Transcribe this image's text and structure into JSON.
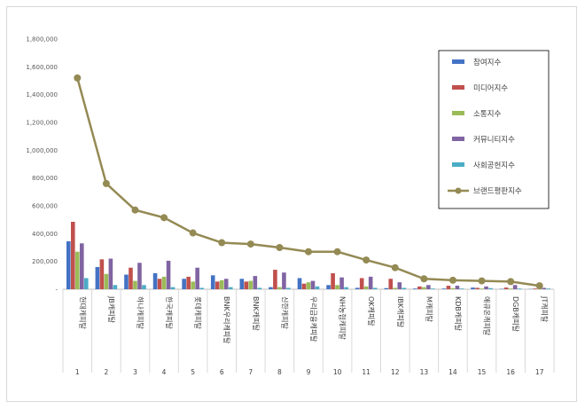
{
  "chart_data": {
    "type": "bar",
    "title": "",
    "xlabel": "",
    "ylabel": "",
    "ylim": [
      0,
      1800000
    ],
    "yticks": [
      "-",
      "200,000",
      "400,000",
      "600,000",
      "800,000",
      "1,000,000",
      "1,200,000",
      "1,400,000",
      "1,600,000",
      "1,800,000"
    ],
    "grid": false,
    "legend_position": "top-right",
    "categories": [
      "현대캐피탈",
      "JB캐피탈",
      "하나캐피탈",
      "한국캐피탈",
      "롯데캐피탈",
      "BNK우리캐피탈",
      "BNK캐피탈",
      "신한캐피탈",
      "우리금융캐피탈",
      "NH농협캐피탈",
      "OK캐피탈",
      "IBK캐피탈",
      "M캐피탈",
      "KDB캐피탈",
      "애큐온캐피탈",
      "DGB캐피탈",
      "JT캐피탈"
    ],
    "indices": [
      "1",
      "2",
      "3",
      "4",
      "5",
      "6",
      "7",
      "8",
      "9",
      "10",
      "11",
      "12",
      "13",
      "14",
      "15",
      "16",
      "17"
    ],
    "series": [
      {
        "name": "참여지수",
        "kind": "bar",
        "color": "#4472c4",
        "values": [
          345000,
          160000,
          105000,
          115000,
          75000,
          100000,
          75000,
          15000,
          80000,
          30000,
          10000,
          8000,
          5000,
          5000,
          12000,
          3000,
          2000
        ]
      },
      {
        "name": "미디어지수",
        "kind": "bar",
        "color": "#c0504d",
        "values": [
          485000,
          215000,
          155000,
          75000,
          90000,
          55000,
          55000,
          140000,
          40000,
          115000,
          80000,
          75000,
          20000,
          25000,
          10000,
          12000,
          5000
        ]
      },
      {
        "name": "소통지수",
        "kind": "bar",
        "color": "#9bbb59",
        "values": [
          270000,
          110000,
          60000,
          90000,
          55000,
          65000,
          60000,
          15000,
          50000,
          30000,
          20000,
          10000,
          15000,
          8000,
          5000,
          5000,
          3000
        ]
      },
      {
        "name": "커뮤니티지수",
        "kind": "bar",
        "color": "#8064a2",
        "values": [
          330000,
          220000,
          190000,
          205000,
          155000,
          75000,
          95000,
          120000,
          60000,
          85000,
          90000,
          50000,
          30000,
          25000,
          20000,
          30000,
          10000
        ]
      },
      {
        "name": "사회공헌지수",
        "kind": "bar",
        "color": "#4bacc6",
        "values": [
          80000,
          30000,
          30000,
          15000,
          10000,
          15000,
          10000,
          10000,
          20000,
          15000,
          10000,
          10000,
          5000,
          5000,
          8000,
          5000,
          5000
        ]
      },
      {
        "name": "브랜드평판지수",
        "kind": "line",
        "color": "#948a54",
        "values": [
          1520000,
          760000,
          570000,
          515000,
          405000,
          335000,
          325000,
          300000,
          270000,
          270000,
          210000,
          155000,
          75000,
          65000,
          60000,
          55000,
          25000
        ]
      }
    ]
  }
}
